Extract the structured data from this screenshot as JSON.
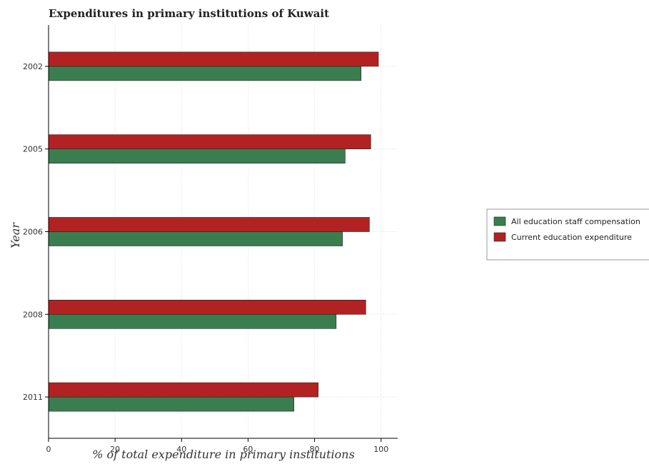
{
  "chart_data": {
    "type": "bar",
    "orientation": "horizontal",
    "title": "Expenditures in primary institutions of Kuwait",
    "xlabel": "% of total expenditure in primary institutions",
    "ylabel": "Year",
    "categories": [
      "2002",
      "2005",
      "2006",
      "2008",
      "2011"
    ],
    "xlim": [
      0,
      105
    ],
    "xticks": [
      0,
      20,
      40,
      60,
      80,
      100
    ],
    "grid": true,
    "legend_position": "right",
    "series": [
      {
        "name": "All education staff compensation",
        "color": "#3a7d4f",
        "values": [
          94.0,
          89.2,
          88.4,
          86.5,
          73.8
        ]
      },
      {
        "name": "Current education expenditure",
        "color": "#b22222",
        "values": [
          99.2,
          96.9,
          96.5,
          95.4,
          81.1
        ]
      }
    ]
  }
}
